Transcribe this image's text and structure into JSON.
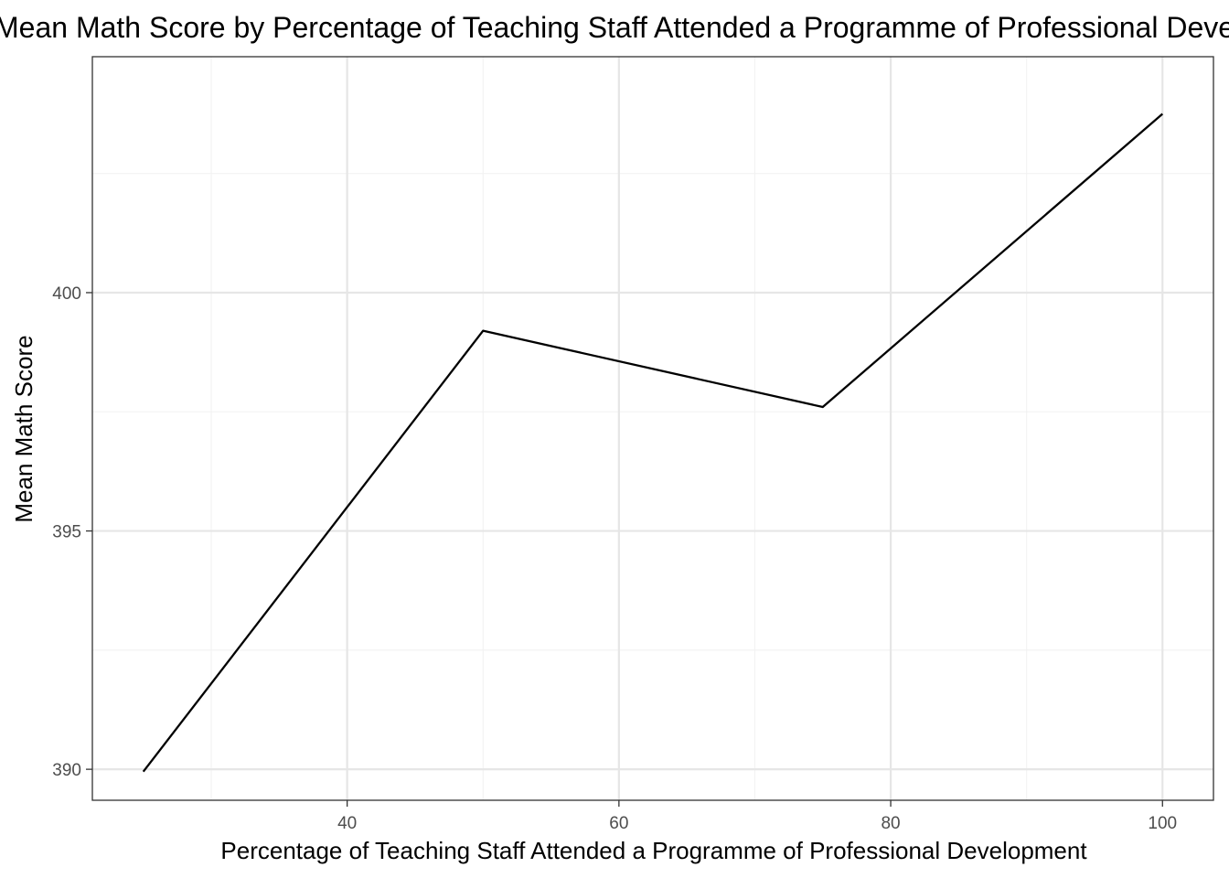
{
  "chart_data": {
    "type": "line",
    "title": "Mean Math Score by Percentage of Teaching Staff Attended a Programme of Professional Development",
    "xlabel": "Percentage of Teaching Staff Attended a Programme of Professional Development",
    "ylabel": "Mean Math Score",
    "x": [
      25,
      50,
      75,
      100
    ],
    "series": [
      {
        "values": [
          389.95,
          399.2,
          397.6,
          403.75
        ]
      }
    ],
    "xlim": [
      21.25,
      103.75
    ],
    "ylim": [
      389.35,
      404.95
    ],
    "x_ticks": [
      40,
      60,
      80,
      100
    ],
    "x_tick_labels": [
      "40",
      "60",
      "80",
      "100"
    ],
    "x_minor_ticks": [
      30,
      50,
      70,
      90
    ],
    "y_ticks": [
      390,
      395,
      400
    ],
    "y_tick_labels": [
      "390",
      "395",
      "400"
    ],
    "y_minor_ticks": [
      392.5,
      397.5,
      402.5
    ],
    "grid": true,
    "legend": "none",
    "colors": {
      "line": "#000000",
      "grid_major": "#e6e6e6",
      "grid_minor": "#f2f2f2",
      "panel_border": "#333333",
      "tick_label": "#4d4d4d"
    }
  }
}
